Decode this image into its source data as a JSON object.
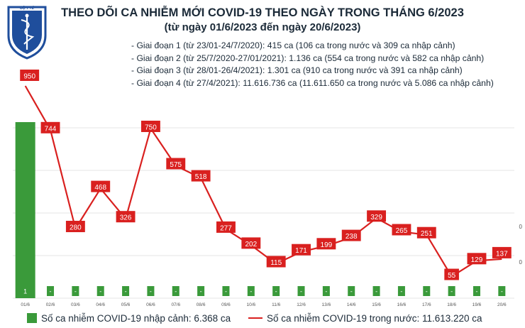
{
  "header": {
    "logo_text": "BỘ Y TẾ · MINISTRY OF HEALTH",
    "title": "THEO DÕI CA NHIỄM MỚI COVID-19 THEO NGÀY TRONG THÁNG 6/2023",
    "subtitle": "(từ ngày 01/6/2023 đến ngày 20/6/2023)"
  },
  "phases": [
    "- Giai đoạn 1 (từ 23/01-24/7/2020): 415 ca (106 ca trong nước và 309 ca nhập cảnh)",
    "- Giai đoạn 2 (từ 25/7/2020-27/01/2021): 1.136 ca (554 ca trong nước và 582 ca nhập cảnh)",
    "- Giai đoạn 3 (từ 28/01-26/4/2021): 1.301 ca (910 ca trong nước và 391 ca nhập cảnh)",
    "- Giai đoạn 4 (từ 27/4/2021): 11.616.736 ca (11.611.650 ca trong nước và 5.086 ca nhập cảnh)"
  ],
  "colors": {
    "bar": "#3a9a3a",
    "line": "#d9201f",
    "label_box": "#d9201f",
    "grid": "#e6e6e6"
  },
  "chart_data": {
    "type": "bar+line",
    "categories": [
      "01/6",
      "02/6",
      "03/6",
      "04/6",
      "05/6",
      "06/6",
      "07/6",
      "08/6",
      "09/6",
      "10/6",
      "11/6",
      "12/6",
      "13/6",
      "14/6",
      "15/6",
      "16/6",
      "17/6",
      "18/6",
      "19/6",
      "20/6"
    ],
    "series": [
      {
        "name": "Số ca nhiễm COVID-19 nhập cảnh: 6.368 ca",
        "type": "bar",
        "values": [
          1,
          0,
          0,
          0,
          0,
          0,
          0,
          0,
          0,
          0,
          0,
          0,
          0,
          0,
          0,
          0,
          0,
          0,
          0,
          0
        ],
        "labels": [
          "1",
          "-",
          "-",
          "-",
          "-",
          "-",
          "-",
          "-",
          "-",
          "-",
          "-",
          "-",
          "-",
          "-",
          "-",
          "-",
          "-",
          "-",
          "-",
          "-"
        ]
      },
      {
        "name": "Số ca nhiễm COVID-19 trong nước: 11.613.220 ca",
        "type": "line",
        "values": [
          950,
          744,
          280,
          468,
          326,
          750,
          575,
          518,
          277,
          202,
          115,
          171,
          199,
          238,
          329,
          265,
          251,
          55,
          129,
          137
        ]
      }
    ],
    "right_axis_ticks": [
      "0",
      "0"
    ],
    "ylim_line": [
      0,
      1000
    ],
    "grid": true,
    "legend_position": "bottom"
  }
}
